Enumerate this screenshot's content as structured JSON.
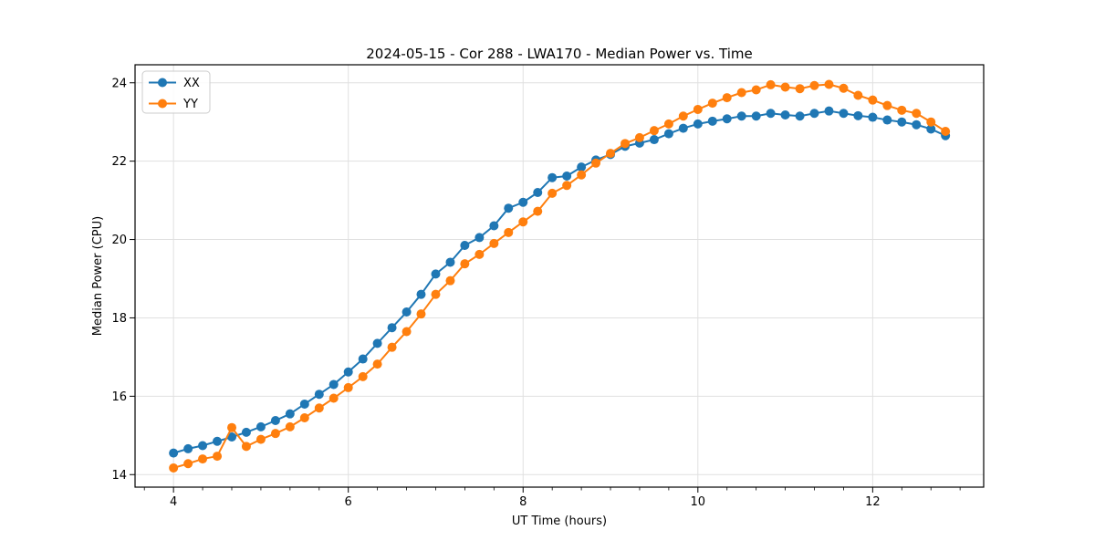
{
  "chart_data": {
    "type": "line",
    "title": "2024-05-15 - Cor 288 - LWA170 - Median Power vs. Time",
    "xlabel": "UT Time (hours)",
    "ylabel": "Median Power (CPU)",
    "xlim": [
      3.56,
      13.27
    ],
    "ylim": [
      13.68,
      24.46
    ],
    "x_major_ticks": [
      4,
      6,
      8,
      10,
      12
    ],
    "x_minor_tick_step": 0.3333,
    "y_major_ticks": [
      14,
      16,
      18,
      20,
      22,
      24
    ],
    "grid": true,
    "grid_color": "#e0e0e0",
    "legend_position": "upper-left",
    "marker": "circle",
    "x": [
      4.0,
      4.167,
      4.333,
      4.5,
      4.667,
      4.833,
      5.0,
      5.167,
      5.333,
      5.5,
      5.667,
      5.833,
      6.0,
      6.167,
      6.333,
      6.5,
      6.667,
      6.833,
      7.0,
      7.167,
      7.333,
      7.5,
      7.667,
      7.833,
      8.0,
      8.167,
      8.333,
      8.5,
      8.667,
      8.833,
      9.0,
      9.167,
      9.333,
      9.5,
      9.667,
      9.833,
      10.0,
      10.167,
      10.333,
      10.5,
      10.667,
      10.833,
      11.0,
      11.167,
      11.333,
      11.5,
      11.667,
      11.833,
      12.0,
      12.167,
      12.333,
      12.5,
      12.667,
      12.833
    ],
    "series": [
      {
        "name": "XX",
        "color": "#1f77b4",
        "values": [
          14.55,
          14.66,
          14.74,
          14.85,
          14.96,
          15.08,
          15.22,
          15.38,
          15.55,
          15.8,
          16.05,
          16.3,
          16.62,
          16.95,
          17.35,
          17.75,
          18.15,
          18.6,
          19.12,
          19.42,
          19.85,
          20.05,
          20.35,
          20.8,
          20.95,
          21.2,
          21.58,
          21.62,
          21.85,
          22.03,
          22.17,
          22.38,
          22.46,
          22.55,
          22.7,
          22.84,
          22.95,
          23.02,
          23.08,
          23.15,
          23.15,
          23.22,
          23.18,
          23.15,
          23.22,
          23.28,
          23.22,
          23.16,
          23.12,
          23.05,
          23.0,
          22.93,
          22.82,
          22.65
        ]
      },
      {
        "name": "YY",
        "color": "#ff7f0e",
        "values": [
          14.17,
          14.28,
          14.4,
          14.47,
          15.2,
          14.72,
          14.9,
          15.05,
          15.22,
          15.45,
          15.7,
          15.95,
          16.22,
          16.5,
          16.82,
          17.25,
          17.65,
          18.1,
          18.6,
          18.95,
          19.38,
          19.62,
          19.9,
          20.18,
          20.45,
          20.72,
          21.18,
          21.38,
          21.65,
          21.95,
          22.2,
          22.45,
          22.6,
          22.78,
          22.95,
          23.15,
          23.32,
          23.48,
          23.62,
          23.75,
          23.82,
          23.95,
          23.89,
          23.85,
          23.93,
          23.96,
          23.86,
          23.68,
          23.56,
          23.42,
          23.3,
          23.22,
          23.0,
          22.76
        ]
      }
    ]
  }
}
